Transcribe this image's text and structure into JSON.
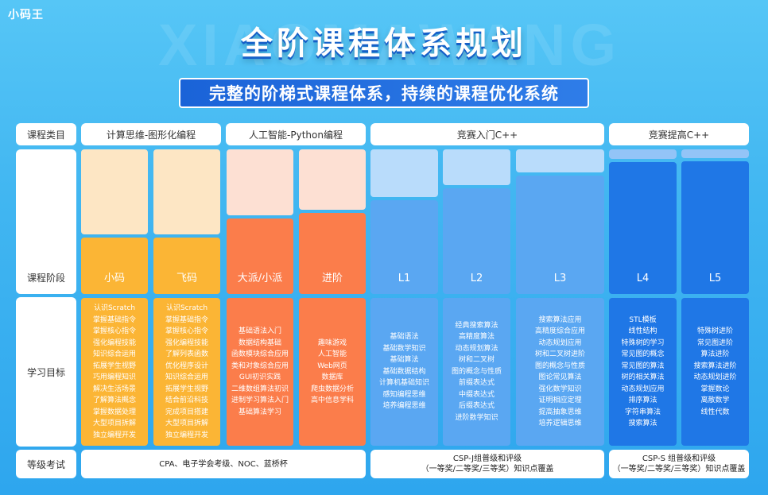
{
  "brand": {
    "logo_text": "小码王",
    "watermark": "XIAOMAWANG"
  },
  "title": "全阶课程体系规划",
  "subtitle": "完整的阶梯式课程体系，持续的课程优化系统",
  "row_labels": {
    "category": "课程类目",
    "stage": "课程阶段",
    "goal": "学习目标",
    "exam": "等级考试"
  },
  "categories": [
    {
      "label": "计算思维-图形化编程"
    },
    {
      "label": "人工智能-Python编程"
    },
    {
      "label": "竞赛入门C++"
    },
    {
      "label": "竞赛提高C++"
    }
  ],
  "colors": {
    "orange_light": "#fde6c4",
    "orange": "#fbb535",
    "coral_light": "#fde0d3",
    "coral": "#fb7d4b",
    "blue_light": "#b9dcfb",
    "blue": "#5aa7f2",
    "deep_light": "#93c4f7",
    "deep": "#1f77e6"
  },
  "stages": [
    {
      "name": "小码",
      "level_pct": 39,
      "theme": "orange",
      "goals": [
        "认识Scratch",
        "掌握基础指令",
        "掌握核心指令",
        "强化编程技能",
        "知识综合运用",
        "拓展学生视野",
        "巧用编程知识",
        "解决生活场景",
        "了解算法概念",
        "掌握数据处理",
        "大型项目拆解",
        "独立编程开发"
      ]
    },
    {
      "name": "飞码",
      "level_pct": 39,
      "theme": "orange",
      "goals": [
        "认识Scratch",
        "掌握基础指令",
        "掌握核心指令",
        "强化编程技能",
        "了解列表函数",
        "优化程序设计",
        "知识综合运用",
        "拓展学生视野",
        "结合前沿科技",
        "完成项目搭建",
        "大型项目拆解",
        "独立编程开发"
      ]
    },
    {
      "name": "大派/小派",
      "level_pct": 52,
      "theme": "coral",
      "goals": [
        "基础语法入门",
        "数据结构基础",
        "函数模块综合应用",
        "类和对象综合应用",
        "GUI初识实践",
        "二维数组算法初识",
        "进制学习算法入门",
        "基础算法学习"
      ]
    },
    {
      "name": "进阶",
      "level_pct": 56,
      "theme": "coral",
      "goals": [
        "趣味游戏",
        "人工智能",
        "Web网页",
        "数据库",
        "爬虫数据分析",
        "高中信息学科"
      ]
    },
    {
      "name": "L1",
      "level_pct": 65,
      "theme": "blue",
      "goals": [
        "基础语法",
        "基础数学知识",
        "基础算法",
        "基础数据结构",
        "计算机基础知识",
        "感知编程思维",
        "培养编程思维"
      ]
    },
    {
      "name": "L2",
      "level_pct": 73,
      "theme": "blue",
      "goals": [
        "经典搜索算法",
        "高精度算法",
        "动态规划算法",
        "树和二叉树",
        "图的概念与性质",
        "前缀表达式",
        "中缀表达式",
        "后缀表达式",
        "进阶数学知识"
      ]
    },
    {
      "name": "L3",
      "level_pct": 82,
      "theme": "blue",
      "goals": [
        "搜索算法应用",
        "高精度综合应用",
        "动态规划应用",
        "树和二叉树进阶",
        "图的概念与性质",
        "图论常见算法",
        "强化数学知识",
        "证明相应定理",
        "提高抽象思维",
        "培养逻辑思维"
      ]
    },
    {
      "name": "L4",
      "level_pct": 91,
      "theme": "deep",
      "goals": [
        "STL模板",
        "线性结构",
        "特殊树的学习",
        "常见图的概念",
        "常见图的算法",
        "树的相关算法",
        "动态规划应用",
        "排序算法",
        "字符串算法",
        "搜索算法"
      ]
    },
    {
      "name": "L5",
      "level_pct": 92,
      "theme": "deep",
      "goals": [
        "特殊树进阶",
        "常见图进阶",
        "算法进阶",
        "搜索算法进阶",
        "动态规划进阶",
        "掌握数论",
        "离散数学",
        "线性代数"
      ]
    }
  ],
  "exams": [
    {
      "lines": [
        "CPA、电子学会考级、NOC、蓝桥杯"
      ]
    },
    {
      "lines": [
        "CSP-J组普级和评级",
        "（一等奖/二等奖/三等奖）知识点覆盖"
      ]
    },
    {
      "lines": [
        "CSP-S 组普级和评级",
        "（一等奖/二等奖/三等奖）知识点覆盖"
      ]
    }
  ]
}
